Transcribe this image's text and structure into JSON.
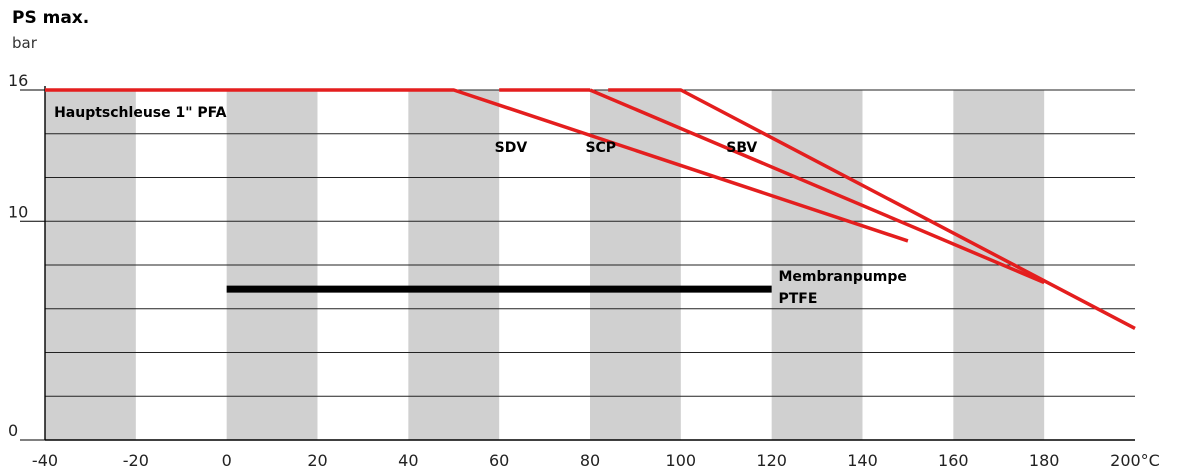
{
  "chart_data": {
    "type": "line",
    "title": "PS max.",
    "ylabel": "bar",
    "xlabel": "",
    "xlim": [
      -40,
      200
    ],
    "ylim": [
      0,
      16
    ],
    "x_ticks": [
      -40,
      -20,
      0,
      20,
      40,
      60,
      80,
      100,
      120,
      140,
      160,
      180,
      200
    ],
    "x_tick_labels": [
      "-40",
      "-20",
      "0",
      "20",
      "40",
      "60",
      "80",
      "100",
      "120",
      "140",
      "160",
      "180",
      "200°C"
    ],
    "y_ticks": [
      0,
      10,
      16
    ],
    "y_tick_labels": [
      "0",
      "10",
      "16"
    ],
    "grid": "horizontal lines every 2 bar; alternating shaded 20°C bands",
    "series": [
      {
        "name": "Hauptschleuse 1\" PFA",
        "color": "#e41e1e",
        "x": [
          -40,
          50,
          150
        ],
        "y": [
          16,
          16,
          9.1
        ]
      },
      {
        "name": "SDV",
        "color": "#e41e1e",
        "x": [
          60,
          80
        ],
        "y": [
          16,
          16
        ]
      },
      {
        "name": "SCP",
        "color": "#e41e1e",
        "x": [
          80,
          180
        ],
        "y": [
          16,
          7.2
        ]
      },
      {
        "name": "SBV",
        "color": "#e41e1e",
        "x": [
          84,
          100,
          200
        ],
        "y": [
          16,
          16,
          5.1
        ]
      },
      {
        "name": "Membranpumpe PTFE",
        "color": "#000000",
        "x": [
          0,
          120
        ],
        "y": [
          6.9,
          6.9
        ]
      }
    ],
    "labels": {
      "hauptschleuse": "Hauptschleuse 1\" PFA",
      "sdv": "SDV",
      "scp": "SCP",
      "sbv": "SBV",
      "membran_line1": "Membranpumpe",
      "membran_line2": "PTFE"
    }
  }
}
